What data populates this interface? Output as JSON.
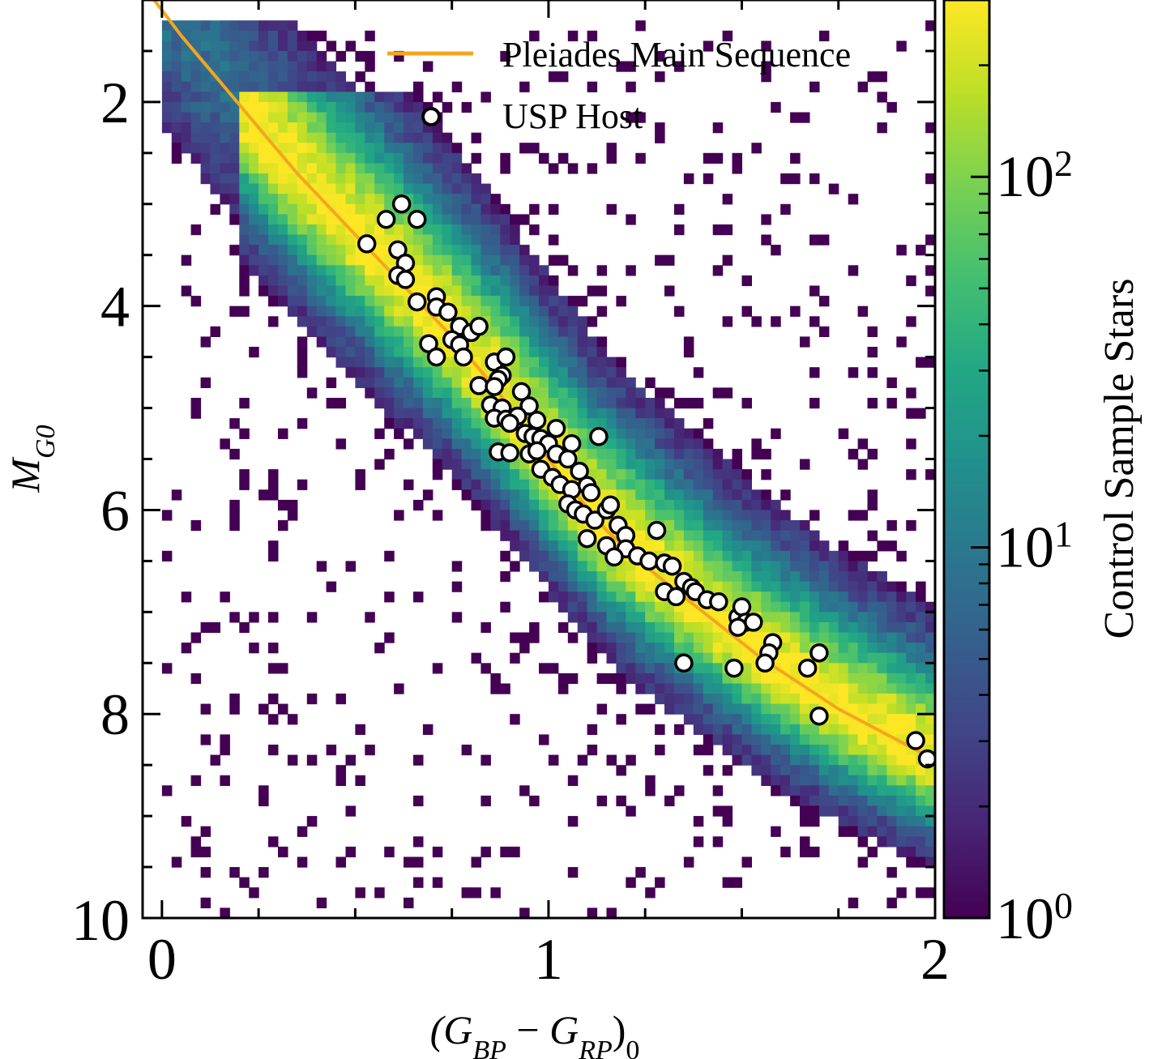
{
  "chart_data": {
    "type": "heatmap",
    "xlabel": "(G_BP − G_RP)_0",
    "ylabel": "M_G0",
    "xlim": [
      -0.05,
      2.0
    ],
    "ylim": [
      10,
      1
    ],
    "x_ticks": [
      0,
      1,
      2
    ],
    "x_tick_labels": [
      "0",
      "1",
      "2"
    ],
    "y_ticks": [
      2,
      4,
      6,
      8,
      10
    ],
    "y_tick_labels": [
      "2",
      "4",
      "6",
      "8",
      "10"
    ],
    "y_inverted": true,
    "grid": false,
    "colorbar": {
      "label": "Control Sample Stars",
      "scale": "log",
      "range": [
        1,
        300
      ],
      "colormap": "viridis",
      "tick_values": [
        1,
        10,
        100
      ],
      "tick_labels": [
        "10^0",
        "10^1",
        "10^2"
      ]
    },
    "legend": {
      "placement": "top-right",
      "entries": [
        {
          "label": "Pleiades Main Sequence",
          "kind": "line",
          "color": "#f5a51d"
        },
        {
          "label": "USP Host",
          "kind": "marker",
          "color": "#000000"
        }
      ]
    },
    "series": [
      {
        "name": "Pleiades Main Sequence",
        "kind": "line",
        "color": "#f5a51d",
        "x": [
          -0.05,
          0.05,
          0.15,
          0.25,
          0.35,
          0.45,
          0.55,
          0.65,
          0.75,
          0.85,
          0.95,
          1.05,
          1.15,
          1.25,
          1.35,
          1.45,
          1.55,
          1.65,
          1.75,
          1.85,
          1.95,
          2.0
        ],
        "y": [
          0.85,
          1.35,
          1.8,
          2.25,
          2.7,
          3.1,
          3.5,
          3.9,
          4.3,
          4.75,
          5.25,
          5.75,
          6.2,
          6.55,
          6.85,
          7.15,
          7.45,
          7.7,
          7.95,
          8.15,
          8.35,
          8.45
        ]
      },
      {
        "name": "USP Host",
        "kind": "scatter",
        "points": [
          [
            0.53,
            3.39
          ],
          [
            0.58,
            3.15
          ],
          [
            0.62,
            3.0
          ],
          [
            0.66,
            3.15
          ],
          [
            0.61,
            3.45
          ],
          [
            0.63,
            3.58
          ],
          [
            0.61,
            3.7
          ],
          [
            0.63,
            3.74
          ],
          [
            0.66,
            3.96
          ],
          [
            0.71,
            3.91
          ],
          [
            0.71,
            4.01
          ],
          [
            0.74,
            4.06
          ],
          [
            0.77,
            4.2
          ],
          [
            0.8,
            4.26
          ],
          [
            0.82,
            4.2
          ],
          [
            0.75,
            4.33
          ],
          [
            0.77,
            4.38
          ],
          [
            0.69,
            4.37
          ],
          [
            0.78,
            4.5
          ],
          [
            0.71,
            4.5
          ],
          [
            0.86,
            4.55
          ],
          [
            0.89,
            4.5
          ],
          [
            0.88,
            4.68
          ],
          [
            0.87,
            4.72
          ],
          [
            0.82,
            4.78
          ],
          [
            0.86,
            4.79
          ],
          [
            0.93,
            4.84
          ],
          [
            0.85,
            4.97
          ],
          [
            0.88,
            5.0
          ],
          [
            0.95,
            4.98
          ],
          [
            0.86,
            5.1
          ],
          [
            0.89,
            5.11
          ],
          [
            0.92,
            5.08
          ],
          [
            0.9,
            5.15
          ],
          [
            0.97,
            5.12
          ],
          [
            1.02,
            5.2
          ],
          [
            0.94,
            5.25
          ],
          [
            0.96,
            5.28
          ],
          [
            0.98,
            5.3
          ],
          [
            1.0,
            5.35
          ],
          [
            1.06,
            5.35
          ],
          [
            1.13,
            5.28
          ],
          [
            0.95,
            5.45
          ],
          [
            0.97,
            5.42
          ],
          [
            1.02,
            5.45
          ],
          [
            0.87,
            5.43
          ],
          [
            0.9,
            5.44
          ],
          [
            1.05,
            5.5
          ],
          [
            0.98,
            5.6
          ],
          [
            1.01,
            5.68
          ],
          [
            1.03,
            5.75
          ],
          [
            1.08,
            5.62
          ],
          [
            1.06,
            5.8
          ],
          [
            1.1,
            5.76
          ],
          [
            1.11,
            5.83
          ],
          [
            1.05,
            5.94
          ],
          [
            1.07,
            6.0
          ],
          [
            1.09,
            6.04
          ],
          [
            1.12,
            6.1
          ],
          [
            1.15,
            6.0
          ],
          [
            1.16,
            5.95
          ],
          [
            1.1,
            6.28
          ],
          [
            1.18,
            6.15
          ],
          [
            1.2,
            6.25
          ],
          [
            1.15,
            6.35
          ],
          [
            1.2,
            6.38
          ],
          [
            1.23,
            6.45
          ],
          [
            1.26,
            6.5
          ],
          [
            1.28,
            6.2
          ],
          [
            1.17,
            6.46
          ],
          [
            1.3,
            6.52
          ],
          [
            1.32,
            6.55
          ],
          [
            1.3,
            6.8
          ],
          [
            1.33,
            6.85
          ],
          [
            1.35,
            6.7
          ],
          [
            1.37,
            6.76
          ],
          [
            1.38,
            6.8
          ],
          [
            1.41,
            6.88
          ],
          [
            1.44,
            6.9
          ],
          [
            1.49,
            7.05
          ],
          [
            1.5,
            6.95
          ],
          [
            1.51,
            7.1
          ],
          [
            1.53,
            7.1
          ],
          [
            1.49,
            7.15
          ],
          [
            1.58,
            7.3
          ],
          [
            1.57,
            7.4
          ],
          [
            1.56,
            7.5
          ],
          [
            1.67,
            7.55
          ],
          [
            1.7,
            7.4
          ],
          [
            1.7,
            8.02
          ],
          [
            1.35,
            7.5
          ],
          [
            1.48,
            7.55
          ],
          [
            1.95,
            8.26
          ],
          [
            1.98,
            8.44
          ]
        ]
      }
    ]
  }
}
